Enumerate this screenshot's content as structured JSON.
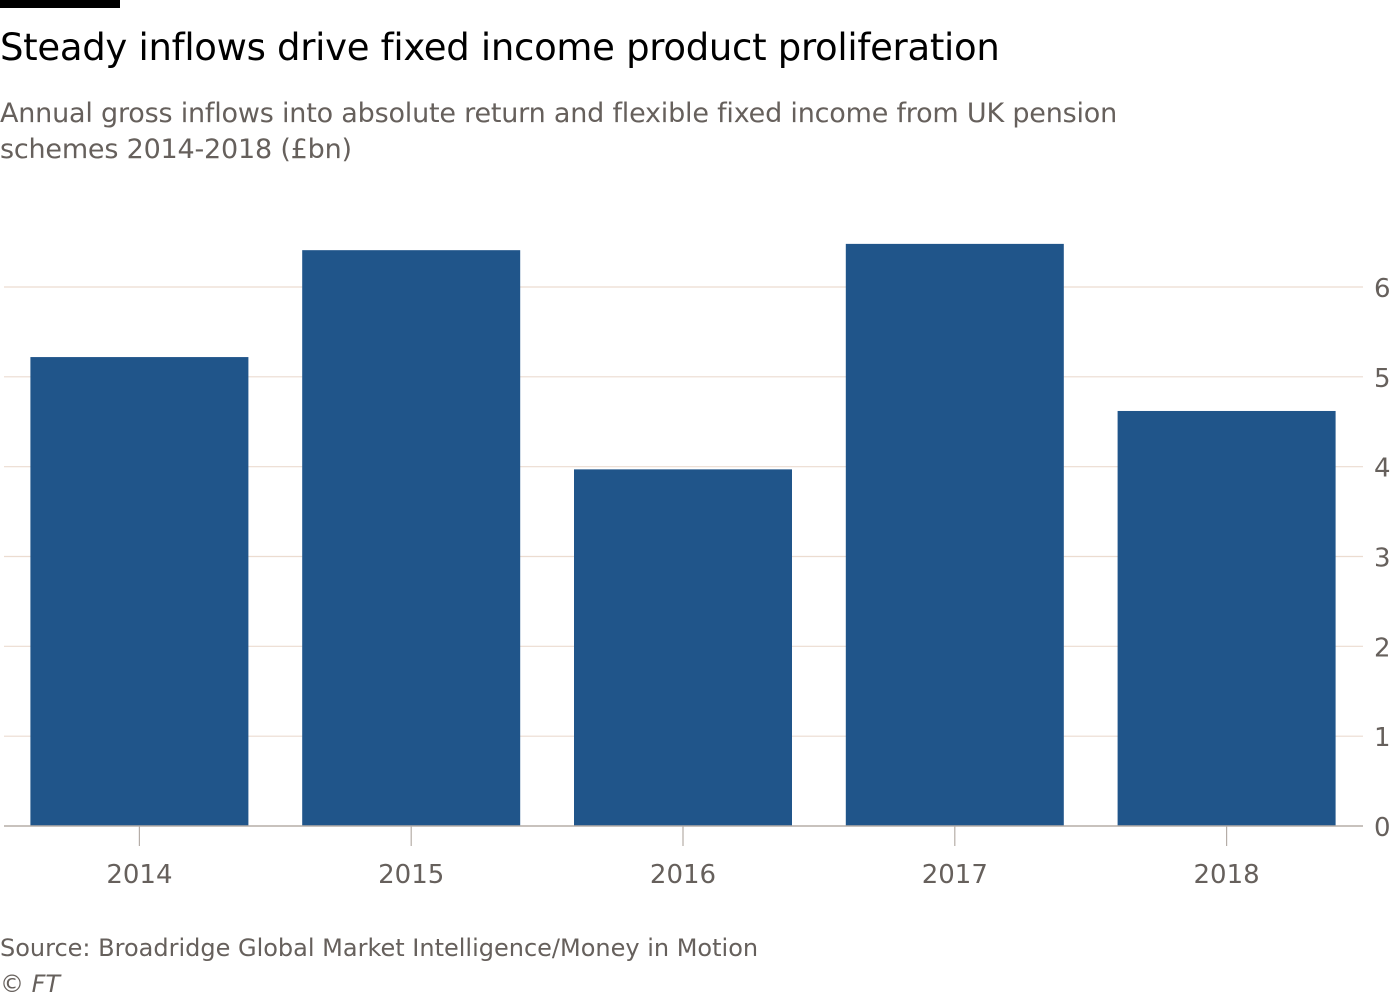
{
  "title": "Steady inflows drive fixed income product proliferation",
  "subtitle": "Annual gross inflows into absolute return and flexible fixed income from UK pension schemes 2014-2018 (£bn)",
  "source": "Source: Broadridge Global Market Intelligence/Money in Motion",
  "copyright": "© FT",
  "colors": {
    "bar": "#20558a",
    "grid": "#ecdcd0",
    "axis": "#b5ada7",
    "text": "#66605c"
  },
  "chart_data": {
    "type": "bar",
    "title": "Steady inflows drive fixed income product proliferation",
    "xlabel": "",
    "ylabel": "£bn",
    "categories": [
      "2014",
      "2015",
      "2016",
      "2017",
      "2018"
    ],
    "values": [
      5.22,
      6.41,
      3.97,
      6.48,
      4.62
    ],
    "ylim": [
      0,
      6
    ],
    "yticks": [
      "0",
      "1",
      "2",
      "3",
      "4",
      "5",
      "6"
    ],
    "grid": true,
    "y_axis_side": "right"
  }
}
